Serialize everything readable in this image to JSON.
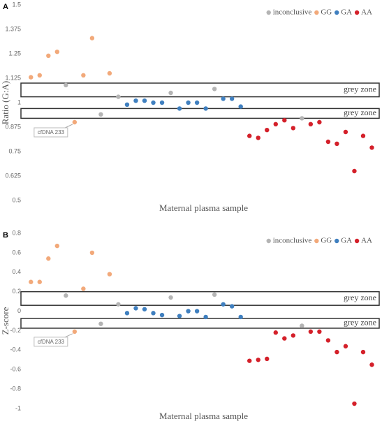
{
  "chart_data": [
    {
      "type": "scatter",
      "label": "A",
      "y_label": "Ratio (G:A)",
      "x_label": "Maternal plasma sample",
      "ylim": [
        0.5,
        1.5
      ],
      "yticks": [
        0.5,
        0.625,
        0.75,
        0.875,
        1,
        1.125,
        1.25,
        1.375,
        1.5
      ],
      "xlim": [
        0.5,
        41
      ],
      "grid": false,
      "legend": "upper right",
      "series": [
        {
          "name": "inconclusive",
          "color": "#b4b4b4",
          "x": [
            5,
            9,
            11,
            17,
            22,
            32
          ],
          "values": [
            1.09,
            0.94,
            1.03,
            1.05,
            1.07,
            0.92
          ]
        },
        {
          "name": "GG",
          "color": "#f2a97a",
          "x": [
            1,
            2,
            3,
            4,
            6,
            7,
            8,
            10
          ],
          "values": [
            1.13,
            1.14,
            1.24,
            1.26,
            0.9,
            1.14,
            1.33,
            1.15
          ]
        },
        {
          "name": "GA",
          "color": "#3f7fbf",
          "x": [
            12,
            13,
            14,
            15,
            16,
            18,
            19,
            20,
            21,
            23,
            24,
            25
          ],
          "values": [
            0.99,
            1.01,
            1.01,
            1.0,
            1.0,
            0.97,
            1.0,
            1.0,
            0.97,
            1.02,
            1.02,
            0.98
          ]
        },
        {
          "name": "AA",
          "color": "#d4202a",
          "x": [
            26,
            27,
            28,
            29,
            30,
            31,
            33,
            34,
            35,
            36,
            37,
            38,
            39,
            40
          ],
          "values": [
            0.83,
            0.82,
            0.86,
            0.89,
            0.91,
            0.87,
            0.89,
            0.9,
            0.8,
            0.79,
            0.85,
            0.65,
            0.83,
            0.77
          ]
        }
      ],
      "zones": [
        {
          "label": "grey zone",
          "range": [
            1.03,
            1.1
          ]
        },
        {
          "label": "grey zone",
          "range": [
            0.92,
            0.97
          ]
        }
      ],
      "annotations": [
        {
          "text": "cfDNA 233",
          "x": 6
        }
      ]
    },
    {
      "type": "scatter",
      "label": "B",
      "y_label": "Z-score",
      "x_label": "Maternal plasma sample",
      "ylim": [
        -1,
        0.8
      ],
      "yticks": [
        0.8,
        0.6,
        0.4,
        0.2,
        0,
        -0.2,
        -0.4,
        -0.6,
        -0.8,
        -1
      ],
      "xlim": [
        0.5,
        41
      ],
      "grid": false,
      "legend": "upper right",
      "series": [
        {
          "name": "inconclusive",
          "color": "#b4b4b4",
          "x": [
            5,
            9,
            11,
            17,
            22,
            32
          ],
          "values": [
            0.16,
            -0.13,
            0.07,
            0.14,
            0.17,
            -0.15
          ]
        },
        {
          "name": "GG",
          "color": "#f2a97a",
          "x": [
            1,
            2,
            3,
            4,
            6,
            7,
            8,
            10
          ],
          "values": [
            0.3,
            0.3,
            0.54,
            0.67,
            -0.21,
            0.23,
            0.6,
            0.38
          ]
        },
        {
          "name": "GA",
          "color": "#3f7fbf",
          "x": [
            12,
            13,
            14,
            15,
            16,
            18,
            19,
            20,
            21,
            23,
            24,
            25
          ],
          "values": [
            -0.02,
            0.03,
            0.02,
            -0.02,
            -0.04,
            -0.05,
            0,
            0,
            -0.06,
            0.07,
            0.05,
            -0.06
          ]
        },
        {
          "name": "AA",
          "color": "#d4202a",
          "x": [
            26,
            27,
            28,
            29,
            30,
            31,
            33,
            34,
            35,
            36,
            37,
            38,
            39,
            40
          ],
          "values": [
            -0.51,
            -0.5,
            -0.49,
            -0.22,
            -0.28,
            -0.25,
            -0.21,
            -0.21,
            -0.3,
            -0.42,
            -0.36,
            -0.95,
            -0.42,
            -0.55
          ]
        }
      ],
      "zones": [
        {
          "label": "grey zone",
          "range": [
            0.06,
            0.2
          ]
        },
        {
          "label": "grey zone",
          "range": [
            -0.175,
            -0.075
          ]
        }
      ],
      "annotations": [
        {
          "text": "cfDNA 233",
          "x": 6
        }
      ]
    }
  ]
}
